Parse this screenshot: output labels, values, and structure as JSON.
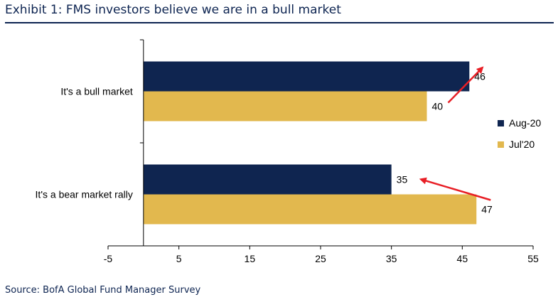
{
  "title": "Exhibit 1: FMS investors believe we are in a bull market",
  "source": "Source: BofA Global Fund Manager Survey",
  "chart_data": {
    "type": "bar",
    "orientation": "horizontal",
    "categories": [
      "It's a bull market",
      "It's a bear market rally"
    ],
    "series": [
      {
        "name": "Aug-20",
        "values": [
          46,
          35
        ],
        "color": "#0f2550"
      },
      {
        "name": "Jul'20",
        "values": [
          40,
          47
        ],
        "color": "#e2b84e"
      }
    ],
    "xlim": [
      -5,
      55
    ],
    "xticks": [
      "-5",
      "5",
      "15",
      "25",
      "35",
      "45",
      "55"
    ],
    "legend_position": "right",
    "annotation_color": "#e81e25"
  }
}
